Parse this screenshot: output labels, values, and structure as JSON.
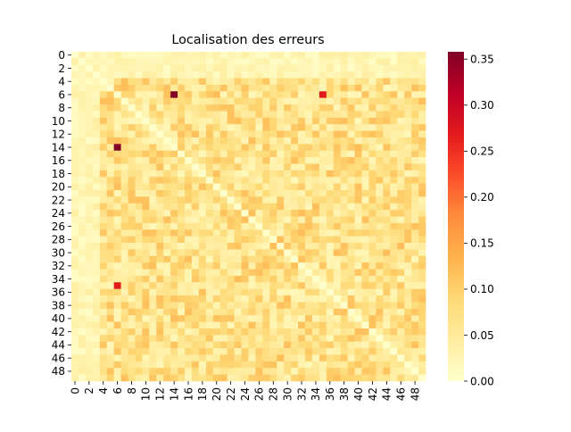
{
  "chart_data": {
    "type": "heatmap",
    "title": "Localisation des erreurs",
    "xlabel": "",
    "ylabel": "",
    "n": 50,
    "x_tick_labels": [
      "0",
      "2",
      "4",
      "6",
      "8",
      "10",
      "12",
      "14",
      "16",
      "18",
      "20",
      "22",
      "24",
      "26",
      "28",
      "30",
      "32",
      "34",
      "36",
      "38",
      "40",
      "42",
      "44",
      "46",
      "48"
    ],
    "y_tick_labels": [
      "0",
      "2",
      "4",
      "6",
      "8",
      "10",
      "12",
      "14",
      "16",
      "18",
      "20",
      "22",
      "24",
      "26",
      "28",
      "30",
      "32",
      "34",
      "36",
      "38",
      "40",
      "42",
      "44",
      "46",
      "48"
    ],
    "colorbar": {
      "cmap": "YlOrRd",
      "range": [
        0.0,
        0.358
      ],
      "tick_labels": [
        "0.00",
        "0.05",
        "0.10",
        "0.15",
        "0.20",
        "0.25",
        "0.30",
        "0.35"
      ],
      "stops": [
        "#ffffcc",
        "#ffeda0",
        "#fed976",
        "#feb24c",
        "#fd8d3c",
        "#fc4e2a",
        "#e31a1c",
        "#bd0026",
        "#800026"
      ]
    },
    "diagonal_value": 0.0,
    "typical_range": [
      0.02,
      0.12
    ],
    "highlighted_cells": [
      {
        "row": 6,
        "col": 14,
        "value": 0.358
      },
      {
        "row": 14,
        "col": 6,
        "value": 0.358
      },
      {
        "row": 6,
        "col": 35,
        "value": 0.27
      },
      {
        "row": 35,
        "col": 6,
        "value": 0.27
      }
    ],
    "low_rows": [
      0,
      1,
      2,
      3
    ],
    "low_cols": [
      0,
      1,
      2,
      3
    ]
  }
}
